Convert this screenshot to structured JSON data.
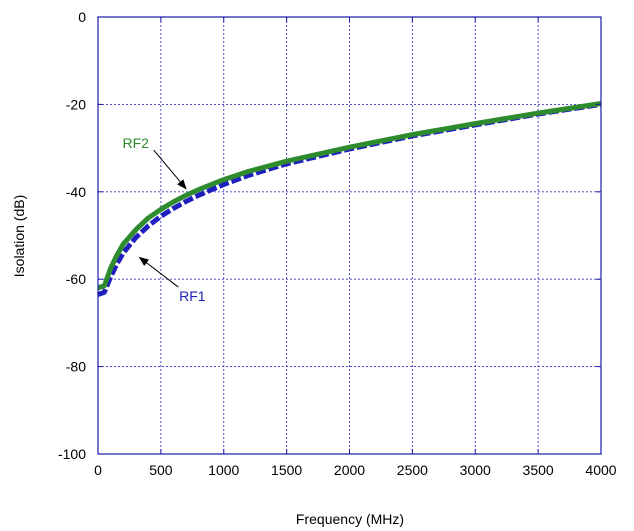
{
  "chart_data": {
    "type": "line",
    "title": "",
    "xlabel": "Frequency (MHz)",
    "ylabel": "Isolation (dB)",
    "xlim": [
      0,
      4000
    ],
    "ylim": [
      -100,
      0
    ],
    "xticks": [
      0,
      500,
      1000,
      1500,
      2000,
      2500,
      3000,
      3500,
      4000
    ],
    "yticks": [
      0,
      -20,
      -40,
      -60,
      -80,
      -100
    ],
    "xtick_labels": [
      "0",
      "500",
      "1000",
      "1500",
      "2000",
      "2500",
      "3000",
      "3500",
      "4000"
    ],
    "ytick_labels": [
      "0",
      "-20",
      "-40",
      "-60",
      "-80",
      "-100"
    ],
    "grid": true,
    "series": [
      {
        "name": "RF1",
        "color": "#1f1fbf",
        "style": "dashed",
        "x": [
          0,
          50,
          100,
          150,
          200,
          300,
          400,
          500,
          600,
          700,
          800,
          1000,
          1200,
          1500,
          2000,
          2500,
          3000,
          3500,
          4000
        ],
        "y": [
          -63.5,
          -63,
          -59.5,
          -56.5,
          -54,
          -50.5,
          -47.8,
          -45.6,
          -43.8,
          -42.2,
          -40.8,
          -38.3,
          -36.2,
          -33.6,
          -30.2,
          -27.2,
          -24.7,
          -22.2,
          -20
        ]
      },
      {
        "name": "RF2",
        "color": "#2e8b2e",
        "style": "solid",
        "x": [
          0,
          50,
          100,
          150,
          200,
          300,
          400,
          500,
          600,
          700,
          800,
          1000,
          1200,
          1500,
          2000,
          2500,
          3000,
          3500,
          4000
        ],
        "y": [
          -62,
          -61.5,
          -57.5,
          -54.5,
          -52,
          -48.7,
          -46,
          -44,
          -42.3,
          -40.8,
          -39.5,
          -37.2,
          -35.3,
          -33,
          -29.8,
          -26.9,
          -24.4,
          -22,
          -19.8
        ]
      }
    ],
    "annotations": [
      {
        "text": "RF2",
        "series": "RF2",
        "color": "#2e8b2e",
        "label_at": [
          300,
          -30
        ],
        "points_to": [
          700,
          -39.3
        ]
      },
      {
        "text": "RF1",
        "series": "RF1",
        "color": "#1f1fbf",
        "label_at": [
          750,
          -65
        ],
        "points_to": [
          330,
          -55
        ]
      }
    ]
  }
}
